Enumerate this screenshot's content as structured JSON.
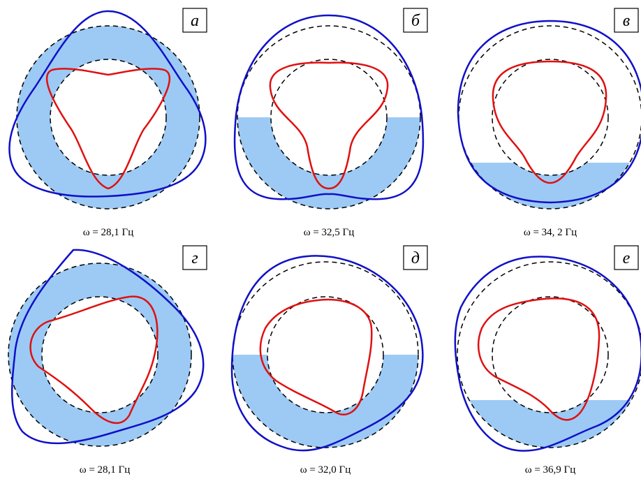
{
  "colors": {
    "fill": "#9ccaf5",
    "outer_contour": "#1010c8",
    "inner_contour": "#e01010",
    "dashed": "#000000"
  },
  "panels": [
    {
      "label": "а",
      "caption": "ω = 28,1 Гц"
    },
    {
      "label": "б",
      "caption": "ω = 32,5 Гц"
    },
    {
      "label": "в",
      "caption": "ω = 34, 2 Гц"
    },
    {
      "label": "г",
      "caption": "ω = 28,1 Гц"
    },
    {
      "label": "д",
      "caption": "ω = 32,0 Гц"
    },
    {
      "label": "е",
      "caption": "ω = 36,9 Гц"
    }
  ]
}
